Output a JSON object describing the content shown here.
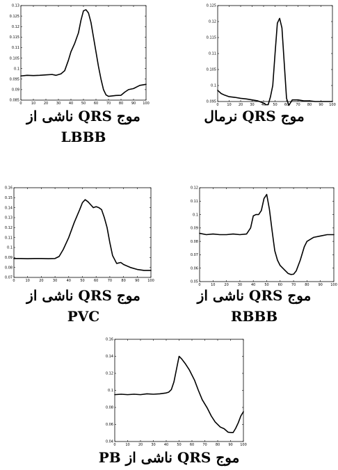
{
  "chart_data": [
    {
      "type": "line",
      "caption": "موج QRS ناشی از",
      "caption2": "LBBB",
      "xlim": [
        0,
        100
      ],
      "ylim": [
        0.085,
        0.13
      ],
      "xticks": [
        0,
        10,
        20,
        30,
        40,
        50,
        60,
        70,
        80,
        90,
        100
      ],
      "yticks": [
        0.085,
        0.09,
        0.095,
        0.1,
        0.105,
        0.11,
        0.115,
        0.12,
        0.125,
        0.13
      ],
      "ytick_labels": [
        "0.085",
        "0.09",
        "0.095",
        "0.1",
        "0.105",
        "0.11",
        "0.115",
        "0.12",
        "0.125",
        "0.13"
      ],
      "series": [
        {
          "x": [
            0,
            5,
            10,
            15,
            20,
            25,
            28,
            32,
            35,
            38,
            40,
            43,
            46,
            48,
            50,
            52,
            54,
            56,
            58,
            60,
            62,
            64,
            66,
            68,
            70,
            73,
            76,
            80,
            83,
            86,
            90,
            95,
            100
          ],
          "y": [
            0.0965,
            0.0968,
            0.0967,
            0.0968,
            0.097,
            0.0972,
            0.0968,
            0.0975,
            0.099,
            0.104,
            0.108,
            0.112,
            0.117,
            0.123,
            0.1275,
            0.128,
            0.1265,
            0.122,
            0.115,
            0.108,
            0.101,
            0.095,
            0.09,
            0.0875,
            0.0868,
            0.087,
            0.0872,
            0.0873,
            0.0888,
            0.09,
            0.0905,
            0.092,
            0.0925
          ]
        }
      ]
    },
    {
      "type": "line",
      "caption": "موج QRS نرمال",
      "caption2": "",
      "xlim": [
        0,
        100
      ],
      "ylim": [
        0.095,
        0.125
      ],
      "xticks": [
        0,
        10,
        20,
        30,
        40,
        50,
        60,
        70,
        80,
        90,
        100
      ],
      "yticks": [
        0.095,
        0.1,
        0.105,
        0.11,
        0.115,
        0.12,
        0.125
      ],
      "ytick_labels": [
        "0.095",
        "0.1",
        "0.105",
        "0.11",
        "0.115",
        "0.12",
        "0.125"
      ],
      "series": [
        {
          "x": [
            0,
            3,
            6,
            10,
            15,
            20,
            25,
            30,
            35,
            40,
            42,
            44,
            46,
            48,
            50,
            52,
            54,
            56,
            58,
            60,
            62,
            65,
            70,
            75,
            80,
            85,
            90,
            95,
            100
          ],
          "y": [
            0.0985,
            0.0975,
            0.097,
            0.0965,
            0.0963,
            0.096,
            0.0958,
            0.0955,
            0.0952,
            0.0945,
            0.094,
            0.094,
            0.0965,
            0.1,
            0.11,
            0.1195,
            0.121,
            0.118,
            0.107,
            0.096,
            0.0938,
            0.0955,
            0.0955,
            0.0952,
            0.0952,
            0.095,
            0.095,
            0.095,
            0.095
          ]
        }
      ]
    },
    {
      "type": "line",
      "caption": "موج QRS ناشی از",
      "caption2": "PVC",
      "xlim": [
        0,
        100
      ],
      "ylim": [
        0.07,
        0.16
      ],
      "xticks": [
        0,
        10,
        20,
        30,
        40,
        50,
        60,
        70,
        80,
        90,
        100
      ],
      "yticks": [
        0.07,
        0.08,
        0.09,
        0.1,
        0.11,
        0.12,
        0.13,
        0.14,
        0.15,
        0.16
      ],
      "ytick_labels": [
        "0.07",
        "0.08",
        "0.09",
        "0.1",
        "0.11",
        "0.12",
        "0.13",
        "0.14",
        "0.15",
        "0.16"
      ],
      "series": [
        {
          "x": [
            0,
            5,
            10,
            15,
            20,
            25,
            30,
            33,
            36,
            40,
            44,
            48,
            50,
            52,
            54,
            56,
            58,
            60,
            62,
            64,
            66,
            68,
            70,
            72,
            75,
            78,
            80,
            85,
            90,
            95,
            100
          ],
          "y": [
            0.089,
            0.089,
            0.0888,
            0.089,
            0.089,
            0.0888,
            0.089,
            0.091,
            0.098,
            0.11,
            0.125,
            0.138,
            0.145,
            0.148,
            0.146,
            0.143,
            0.14,
            0.141,
            0.14,
            0.138,
            0.13,
            0.12,
            0.105,
            0.092,
            0.084,
            0.085,
            0.083,
            0.08,
            0.078,
            0.077,
            0.077
          ]
        }
      ]
    },
    {
      "type": "line",
      "caption": "موج QRS ناشی از",
      "caption2": "RBBB",
      "xlim": [
        0,
        100
      ],
      "ylim": [
        0.05,
        0.12
      ],
      "xticks": [
        0,
        10,
        20,
        30,
        40,
        50,
        60,
        70,
        80,
        90,
        100
      ],
      "yticks": [
        0.05,
        0.06,
        0.07,
        0.08,
        0.09,
        0.1,
        0.11,
        0.12
      ],
      "ytick_labels": [
        "0.05",
        "0.06",
        "0.07",
        "0.08",
        "0.09",
        "0.1",
        "0.11",
        "0.12"
      ],
      "series": [
        {
          "x": [
            0,
            5,
            10,
            15,
            20,
            25,
            30,
            35,
            38,
            40,
            42,
            44,
            46,
            48,
            50,
            52,
            54,
            56,
            58,
            60,
            63,
            66,
            68,
            70,
            72,
            75,
            78,
            80,
            85,
            90,
            95,
            100
          ],
          "y": [
            0.086,
            0.085,
            0.0855,
            0.085,
            0.085,
            0.0855,
            0.085,
            0.0855,
            0.09,
            0.099,
            0.1,
            0.1,
            0.103,
            0.112,
            0.115,
            0.104,
            0.088,
            0.073,
            0.066,
            0.062,
            0.059,
            0.056,
            0.0553,
            0.0555,
            0.058,
            0.066,
            0.076,
            0.08,
            0.083,
            0.084,
            0.085,
            0.085
          ]
        }
      ]
    },
    {
      "type": "line",
      "caption": "موج QRS ناشی از PB",
      "caption2": "",
      "xlim": [
        0,
        100
      ],
      "ylim": [
        0.04,
        0.16
      ],
      "xticks": [
        0,
        10,
        20,
        30,
        40,
        50,
        60,
        70,
        80,
        90,
        100
      ],
      "yticks": [
        0.04,
        0.06,
        0.08,
        0.1,
        0.12,
        0.14,
        0.16
      ],
      "ytick_labels": [
        "0.04",
        "0.06",
        "0.08",
        "0.1",
        "0.12",
        "0.14",
        "0.16"
      ],
      "series": [
        {
          "x": [
            0,
            5,
            10,
            15,
            20,
            25,
            30,
            35,
            40,
            42,
            44,
            46,
            48,
            50,
            52,
            55,
            58,
            62,
            65,
            68,
            72,
            75,
            78,
            82,
            85,
            88,
            90,
            92,
            94,
            96,
            98,
            100
          ],
          "y": [
            0.095,
            0.0955,
            0.095,
            0.0955,
            0.095,
            0.096,
            0.0955,
            0.096,
            0.097,
            0.098,
            0.101,
            0.11,
            0.125,
            0.14,
            0.137,
            0.131,
            0.124,
            0.112,
            0.1,
            0.089,
            0.079,
            0.07,
            0.063,
            0.057,
            0.055,
            0.051,
            0.0505,
            0.0505,
            0.0555,
            0.062,
            0.07,
            0.075
          ]
        }
      ]
    }
  ]
}
